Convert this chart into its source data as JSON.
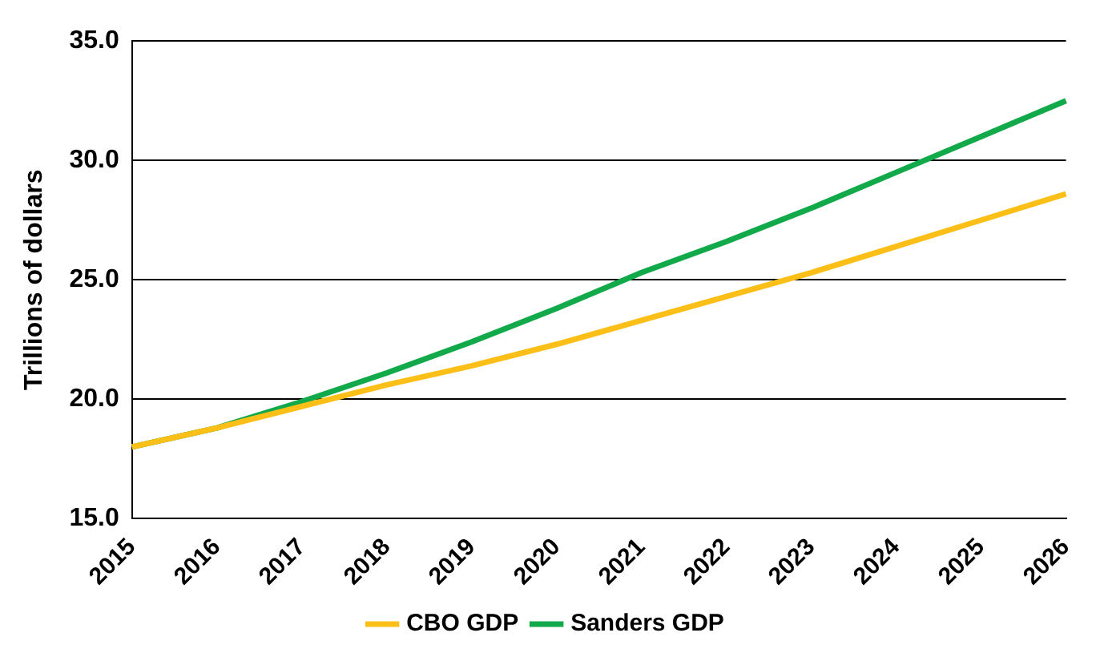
{
  "chart_data": {
    "type": "line",
    "ylabel": "Trillions of dollars",
    "categories": [
      "2015",
      "2016",
      "2017",
      "2018",
      "2019",
      "2020",
      "2021",
      "2022",
      "2023",
      "2024",
      "2025",
      "2026"
    ],
    "series": [
      {
        "name": "CBO GDP",
        "color": "#fbbf18",
        "values": [
          18.0,
          18.8,
          19.7,
          20.6,
          21.4,
          22.3,
          23.3,
          24.3,
          25.3,
          26.4,
          27.5,
          28.6
        ]
      },
      {
        "name": "Sanders GDP",
        "color": "#12a94b",
        "values": [
          18.0,
          18.8,
          19.9,
          21.1,
          22.4,
          23.8,
          25.3,
          26.6,
          28.0,
          29.5,
          31.0,
          32.5
        ]
      }
    ],
    "ylim": [
      15,
      35
    ],
    "yticks": [
      {
        "value": 15,
        "label": "15.0"
      },
      {
        "value": 20,
        "label": "20.0"
      },
      {
        "value": 25,
        "label": "25.0"
      },
      {
        "value": 30,
        "label": "30.0"
      },
      {
        "value": 35,
        "label": "35.0"
      }
    ],
    "grid": "y",
    "legend": "bottom",
    "marker": "none",
    "line_style": "solid"
  }
}
